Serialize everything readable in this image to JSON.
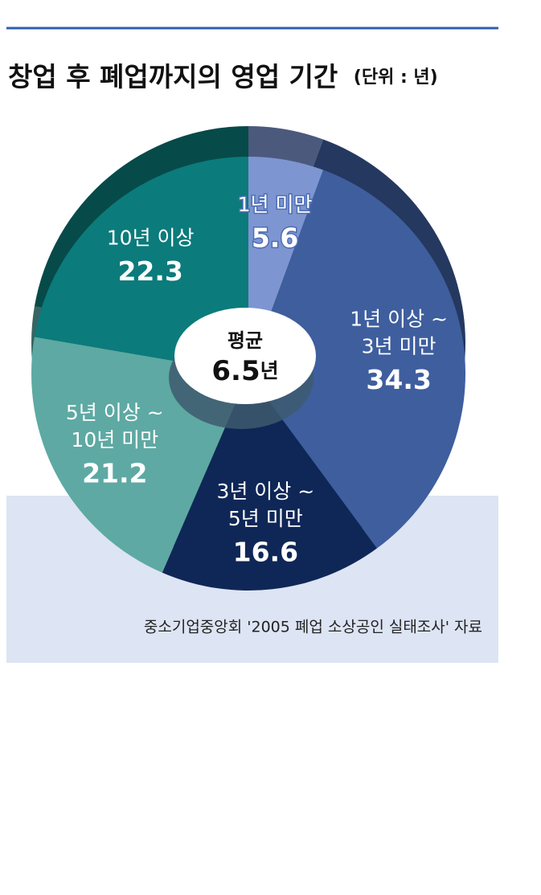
{
  "chart_data": {
    "type": "pie",
    "title": "창업 후 폐업까지의 영업 기간",
    "unit": "(단위 : 년)",
    "categories": [
      [
        "1년 미만"
      ],
      [
        "1년 이상 ~",
        "3년 미만"
      ],
      [
        "3년 이상 ~",
        "5년 미만"
      ],
      [
        "5년 이상 ~",
        "10년 미만"
      ],
      [
        "10년 이상"
      ]
    ],
    "values": [
      5.6,
      34.3,
      16.6,
      21.2,
      22.3
    ],
    "colors": [
      "#7d95d0",
      "#3e5e9e",
      "#0f2757",
      "#5ea9a3",
      "#0b7b7b"
    ],
    "center_label": "평균",
    "center_value": 6.5,
    "center_unit": "년",
    "source": "중소기업중앙회 '2005 폐업 소상공인 실태조사' 자료"
  }
}
